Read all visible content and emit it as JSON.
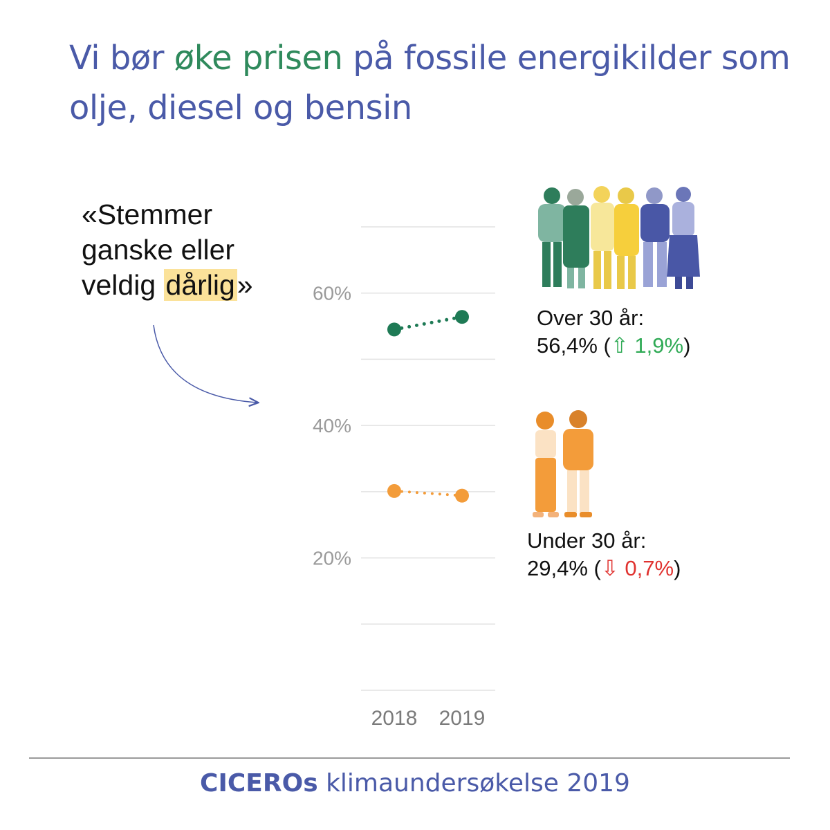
{
  "title": {
    "part1": "Vi bør ",
    "part2": "øke prisen",
    "part3": " på fossile energikilder som olje, diesel og bensin"
  },
  "quote": {
    "before": "«Stemmer ganske eller veldig ",
    "highlight": "dårlig",
    "after": "»"
  },
  "groups": {
    "over": {
      "label": "Over 30 år:",
      "value": "56,4%",
      "open": " (",
      "change": "⇧ 1,9%",
      "close": ")"
    },
    "under": {
      "label": "Under 30 år:",
      "value": "29,4%",
      "open": " (",
      "change": "⇩ 0,7%",
      "close": ")"
    }
  },
  "footer": {
    "brand": "CICEROs",
    "rest": " klimaundersøkelse 2019"
  },
  "colors": {
    "title": "#4a5aa8",
    "title_accent": "#2f8a5c",
    "over": "#1e7a55",
    "under": "#f39c3a",
    "up": "#2faa55",
    "down": "#e0322f",
    "grid": "#e2e2e2"
  },
  "chart_data": {
    "type": "line",
    "x": [
      "2018",
      "2019"
    ],
    "ylim": [
      0,
      70
    ],
    "yticks": [
      0,
      10,
      20,
      30,
      40,
      50,
      60,
      70
    ],
    "ytick_labels": {
      "20": "20%",
      "40": "40%",
      "60": "60%"
    },
    "grid": true,
    "series": [
      {
        "name": "Over 30 år",
        "values": [
          54.5,
          56.4
        ],
        "color": "#1e7a55"
      },
      {
        "name": "Under 30 år",
        "values": [
          30.1,
          29.4
        ],
        "color": "#f39c3a"
      }
    ]
  }
}
